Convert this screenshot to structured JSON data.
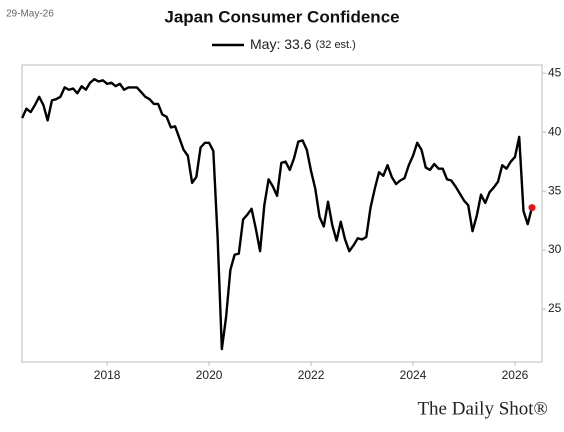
{
  "chart_data": {
    "type": "line",
    "title": "Japan Consumer Confidence",
    "date_label": "29-May-26",
    "source": "The Daily Shot®",
    "legend_note": "(32 est.)",
    "x": [
      2016.333,
      2016.417,
      2016.5,
      2016.583,
      2016.667,
      2016.75,
      2016.833,
      2016.917,
      2017,
      2017.083,
      2017.167,
      2017.25,
      2017.333,
      2017.417,
      2017.5,
      2017.583,
      2017.667,
      2017.75,
      2017.833,
      2017.917,
      2018,
      2018.083,
      2018.167,
      2018.25,
      2018.333,
      2018.417,
      2018.5,
      2018.583,
      2018.667,
      2018.75,
      2018.833,
      2018.917,
      2019,
      2019.083,
      2019.167,
      2019.25,
      2019.333,
      2019.417,
      2019.5,
      2019.583,
      2019.667,
      2019.75,
      2019.833,
      2019.917,
      2020,
      2020.083,
      2020.167,
      2020.25,
      2020.333,
      2020.417,
      2020.5,
      2020.583,
      2020.667,
      2020.75,
      2020.833,
      2020.917,
      2021,
      2021.083,
      2021.167,
      2021.25,
      2021.333,
      2021.417,
      2021.5,
      2021.583,
      2021.667,
      2021.75,
      2021.833,
      2021.917,
      2022,
      2022.083,
      2022.167,
      2022.25,
      2022.333,
      2022.417,
      2022.5,
      2022.583,
      2022.667,
      2022.75,
      2022.833,
      2022.917,
      2023,
      2023.083,
      2023.167,
      2023.25,
      2023.333,
      2023.417,
      2023.5,
      2023.583,
      2023.667,
      2023.75,
      2023.833,
      2023.917,
      2024,
      2024.083,
      2024.167,
      2024.25,
      2024.333,
      2024.417,
      2024.5,
      2024.583,
      2024.667,
      2024.75,
      2024.833,
      2024.917,
      2025,
      2025.083,
      2025.167,
      2025.25,
      2025.333,
      2025.417,
      2025.5,
      2025.583,
      2025.667,
      2025.75,
      2025.833,
      2025.917,
      2026,
      2026.083,
      2026.167,
      2026.25,
      2026.333
    ],
    "series": [
      {
        "name": "May: 33.6",
        "color": "#000000",
        "values": [
          41.2,
          42.0,
          41.7,
          42.3,
          43.0,
          42.3,
          41.0,
          42.7,
          42.8,
          43.0,
          43.8,
          43.6,
          43.7,
          43.3,
          43.9,
          43.6,
          44.2,
          44.5,
          44.3,
          44.4,
          44.1,
          44.2,
          43.9,
          44.1,
          43.6,
          43.8,
          43.8,
          43.8,
          43.4,
          43.0,
          42.8,
          42.4,
          42.4,
          41.5,
          41.3,
          40.4,
          40.5,
          39.5,
          38.5,
          38.0,
          35.7,
          36.2,
          38.7,
          39.1,
          39.1,
          38.4,
          31.1,
          21.6,
          24.3,
          28.3,
          29.6,
          29.7,
          32.6,
          33.0,
          33.5,
          31.8,
          29.9,
          33.8,
          36.0,
          35.4,
          34.6,
          37.4,
          37.5,
          36.8,
          37.8,
          39.2,
          39.3,
          38.5,
          36.7,
          35.2,
          32.8,
          32.0,
          34.1,
          32.1,
          30.8,
          32.4,
          30.9,
          29.9,
          30.4,
          31.0,
          30.9,
          31.1,
          33.6,
          35.2,
          36.6,
          36.3,
          37.2,
          36.2,
          35.6,
          35.9,
          36.1,
          37.2,
          38.0,
          39.1,
          38.5,
          37.0,
          36.8,
          37.3,
          36.9,
          36.9,
          36.0,
          35.9,
          35.4,
          34.8,
          34.2,
          33.8,
          31.6,
          32.9,
          34.7,
          34.0,
          34.9,
          35.3,
          35.8,
          37.2,
          36.9,
          37.5,
          37.9,
          39.6,
          33.3,
          32.2,
          33.6
        ]
      }
    ],
    "highlight_color": "#e8121b",
    "xlim": [
      2016.33,
      2026.53
    ],
    "xticks": [
      2018,
      2020,
      2022,
      2024,
      2026
    ],
    "ylim": [
      20.5,
      45.7
    ],
    "yticks": [
      25,
      30,
      35,
      40,
      45
    ],
    "grid": false
  }
}
